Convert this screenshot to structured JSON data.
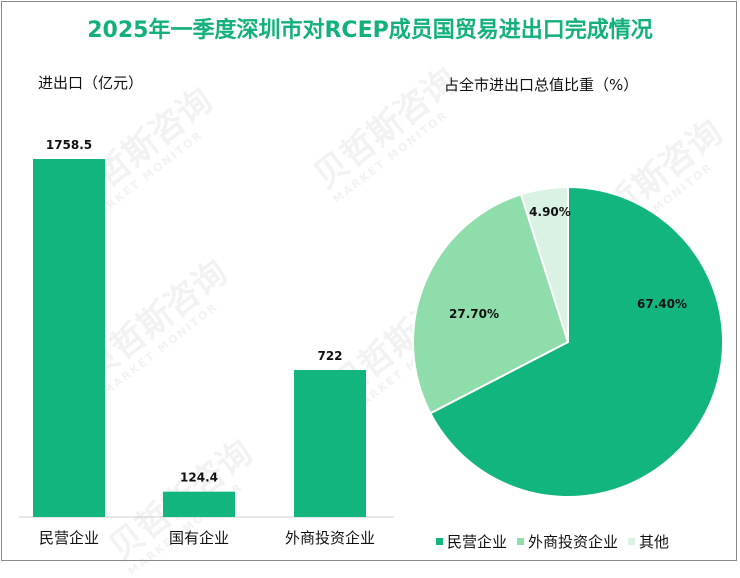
{
  "title": "2025年一季度深圳市对RCEP成员国贸易进出口完成情况",
  "watermark": {
    "text": "贝哲斯咨询",
    "subtext": "MARKET MONITOR"
  },
  "chart_data": [
    {
      "type": "bar",
      "title": "进出口（亿元）",
      "categories": [
        "民营企业",
        "国有企业",
        "外商投资企业"
      ],
      "values": [
        1758.5,
        124.4,
        722
      ],
      "value_labels": [
        "1758.5",
        "124.4",
        "722"
      ],
      "color": "#11b57d",
      "grid": false
    },
    {
      "type": "pie",
      "title": "占全市进出口总值比重（%）",
      "labels": [
        "民营企业",
        "外商投资企业",
        "其他"
      ],
      "values": [
        67.4,
        27.7,
        4.9
      ],
      "value_labels": [
        "67.40%",
        "27.70%",
        "4.90%"
      ],
      "colors": [
        "#11b57d",
        "#8fddaa",
        "#d9f2e4"
      ],
      "legend_position": "bottom"
    }
  ]
}
